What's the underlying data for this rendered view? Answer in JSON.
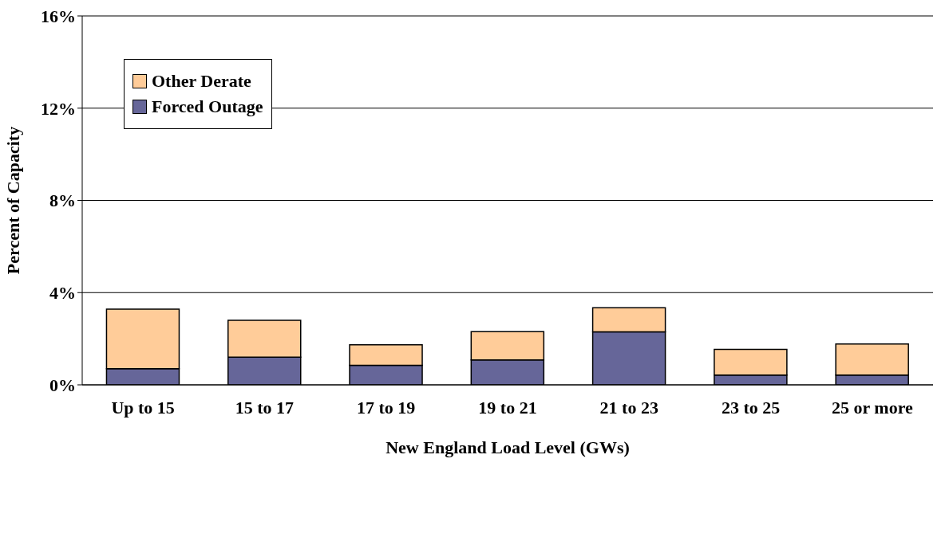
{
  "chart_data": {
    "type": "bar",
    "stacked": true,
    "xlabel": "New England Load Level (GWs)",
    "ylabel": "Percent of Capacity",
    "categories": [
      "Up to 15",
      "15 to 17",
      "17 to 19",
      "19 to 21",
      "21 to 23",
      "23 to 25",
      "25 or more"
    ],
    "series": [
      {
        "name": "Forced Outage",
        "color": "#666699",
        "values": [
          0.7,
          1.2,
          0.85,
          1.08,
          2.3,
          0.42,
          0.42
        ]
      },
      {
        "name": "Other Derate",
        "color": "#ffcc99",
        "values": [
          2.58,
          1.6,
          0.89,
          1.23,
          1.04,
          1.12,
          1.35
        ]
      }
    ],
    "ylim": [
      0,
      16
    ],
    "yticks": [
      {
        "value": 0,
        "label": "0%"
      },
      {
        "value": 4,
        "label": "4%"
      },
      {
        "value": 8,
        "label": "8%"
      },
      {
        "value": 12,
        "label": "12%"
      },
      {
        "value": 16,
        "label": "16%"
      }
    ],
    "grid": "y",
    "legend": "top left"
  }
}
